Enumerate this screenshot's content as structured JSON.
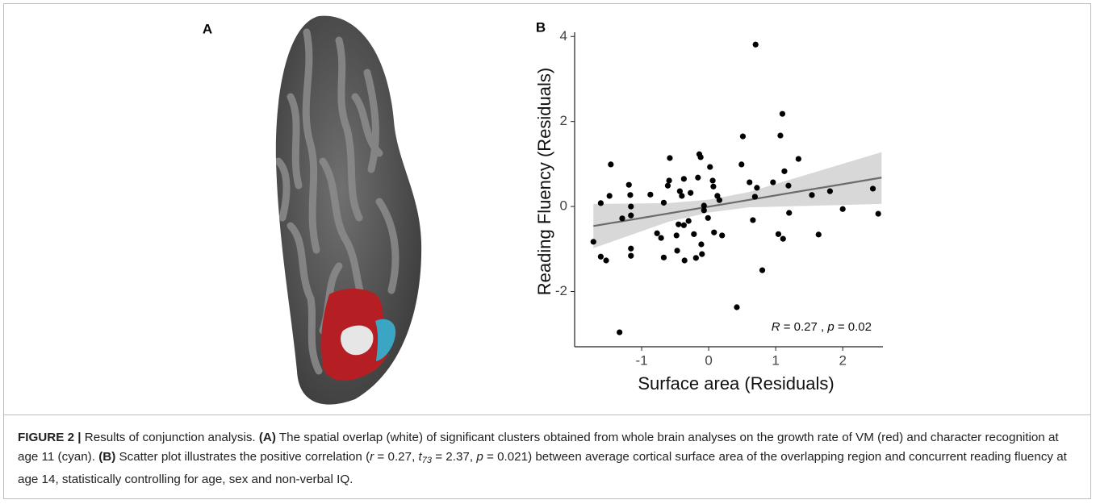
{
  "panel_a": {
    "label": "A"
  },
  "chart_data": {
    "type": "scatter",
    "panel_label": "B",
    "xlabel": "Surface area (Residuals)",
    "ylabel": "Reading Fluency (Residuals)",
    "annotation": [
      "R",
      " = 0.27 , ",
      "p",
      " = 0.02"
    ],
    "x": [
      -1.72,
      -1.61,
      -1.61,
      -1.53,
      -1.48,
      -1.46,
      -1.33,
      -1.29,
      -1.19,
      -1.17,
      -1.16,
      -1.16,
      -1.16,
      -1.16,
      -0.87,
      -0.77,
      -0.71,
      -0.67,
      -0.67,
      -0.61,
      -0.59,
      -0.58,
      -0.48,
      -0.47,
      -0.45,
      -0.43,
      -0.4,
      -0.37,
      -0.37,
      -0.36,
      -0.3,
      -0.27,
      -0.22,
      -0.19,
      -0.16,
      -0.14,
      -0.12,
      -0.11,
      -0.1,
      -0.07,
      -0.07,
      -0.01,
      0.02,
      0.06,
      0.07,
      0.08,
      0.13,
      0.16,
      0.2,
      0.42,
      0.49,
      0.51,
      0.61,
      0.66,
      0.69,
      0.7,
      0.72,
      0.8,
      0.96,
      1.04,
      1.07,
      1.1,
      1.11,
      1.13,
      1.2,
      1.19,
      1.34,
      1.54,
      1.64,
      1.81,
      2.0,
      2.45,
      2.53
    ],
    "values": [
      -0.83,
      0.08,
      -1.18,
      -1.27,
      0.25,
      0.99,
      -2.96,
      -0.28,
      0.51,
      0.27,
      0.0,
      -0.21,
      -0.99,
      -1.16,
      0.28,
      -0.63,
      -0.74,
      0.09,
      -1.2,
      0.49,
      0.61,
      1.14,
      -0.68,
      -1.04,
      -0.42,
      0.36,
      0.25,
      0.65,
      -0.44,
      -1.27,
      -0.34,
      0.32,
      -0.65,
      -1.21,
      0.68,
      1.23,
      1.16,
      -0.89,
      -1.12,
      0.02,
      -0.09,
      -0.27,
      0.93,
      0.61,
      0.47,
      -0.61,
      0.25,
      0.15,
      -0.68,
      -2.37,
      0.99,
      1.65,
      0.57,
      -0.32,
      0.23,
      3.81,
      0.44,
      -1.5,
      0.57,
      -0.65,
      1.67,
      2.18,
      -0.76,
      0.83,
      -0.15,
      0.49,
      1.12,
      0.27,
      -0.66,
      0.36,
      -0.06,
      0.42,
      -0.17
    ],
    "color": "#000000",
    "fit": {
      "x": [
        -1.72,
        2.58
      ],
      "y": [
        -0.46,
        0.68
      ],
      "color": "#6b6b6b"
    },
    "band": {
      "x": [
        -1.72,
        -0.6,
        0,
        0.6,
        2.58
      ],
      "lower": [
        -0.98,
        -0.36,
        -0.14,
        -0.02,
        0.06
      ],
      "upper": [
        0.06,
        0.08,
        0.16,
        0.34,
        1.28
      ],
      "color": "#d4d4d4"
    },
    "xlim": [
      -2.0,
      2.6
    ],
    "ylim": [
      -3.3,
      4.1
    ],
    "xticks": [
      -1,
      0,
      1,
      2
    ],
    "yticks": [
      -2,
      0,
      2,
      4
    ]
  },
  "caption": [
    {
      "text": "FIGURE 2 |",
      "style": "bold"
    },
    {
      "text": " Results of conjunction analysis. ",
      "style": "plain"
    },
    {
      "text": "(A)",
      "style": "bold"
    },
    {
      "text": " The spatial overlap (white) of significant clusters obtained from whole brain analyses on the growth rate of VM (red) and character recognition at age 11 (cyan). ",
      "style": "plain"
    },
    {
      "text": "(B)",
      "style": "bold"
    },
    {
      "text": " Scatter plot illustrates the positive correlation (",
      "style": "plain"
    },
    {
      "text": "r",
      "style": "italic"
    },
    {
      "text": " = 0.27, ",
      "style": "plain"
    },
    {
      "text": "t",
      "style": "italic"
    },
    {
      "text": "73",
      "style": "sub"
    },
    {
      "text": " = 2.37, ",
      "style": "plain"
    },
    {
      "text": "p",
      "style": "italic"
    },
    {
      "text": " = 0.021) between average cortical surface area of the overlapping region and concurrent reading fluency at age 14, statistically controlling for age, sex and non-verbal IQ.",
      "style": "plain"
    }
  ]
}
